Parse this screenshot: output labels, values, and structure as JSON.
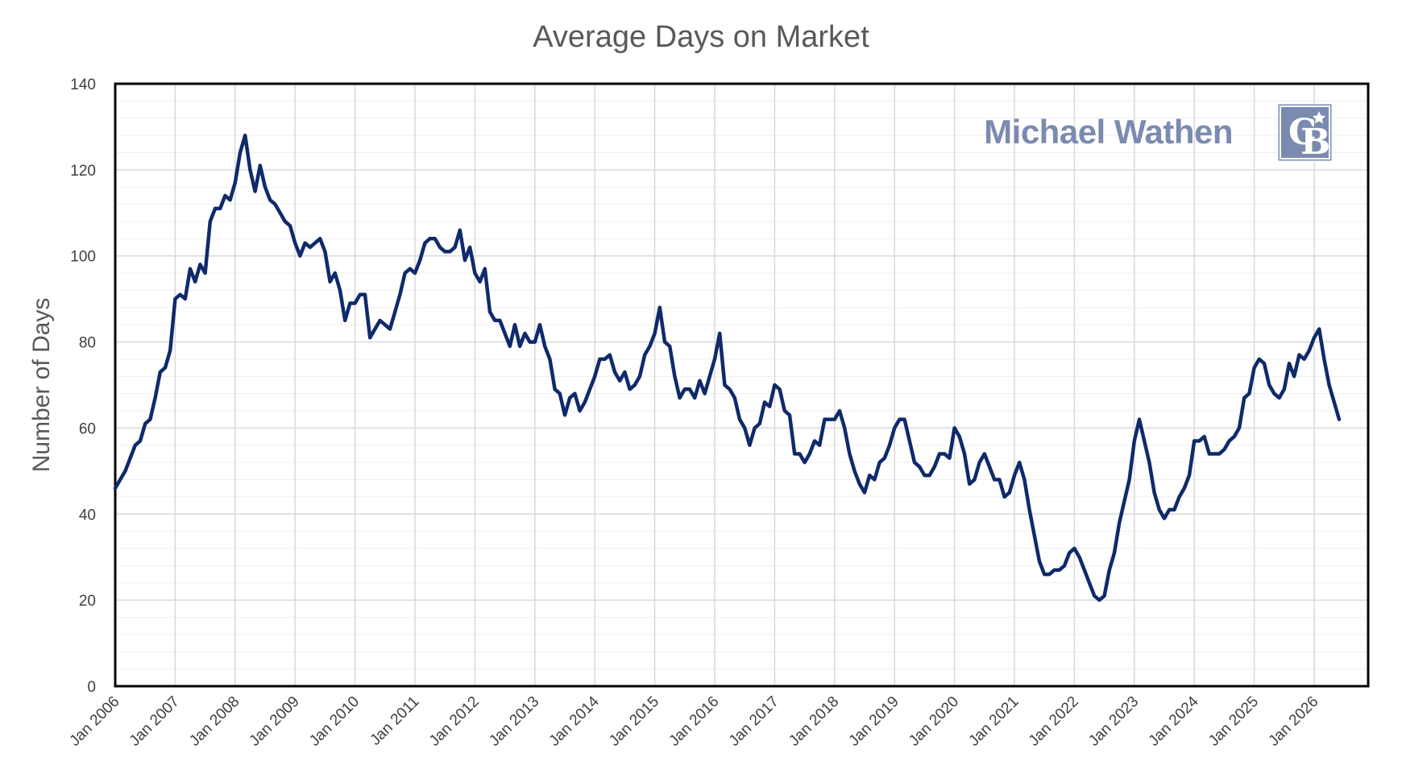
{
  "chart_data": {
    "type": "line",
    "title": "Average Days on Market",
    "ylabel": "Number of Days",
    "xlabel": "",
    "ylim": [
      0,
      140
    ],
    "yticks": [
      0,
      20,
      40,
      60,
      80,
      100,
      120,
      140
    ],
    "x_start": "Jan 2006",
    "x_ticks": [
      "Jan 2006",
      "Jan 2007",
      "Jan 2008",
      "Jan 2009",
      "Jan 2010",
      "Jan 2011",
      "Jan 2012",
      "Jan 2013",
      "Jan 2014",
      "Jan 2015",
      "Jan 2016",
      "Jan 2017",
      "Jan 2018",
      "Jan 2019",
      "Jan 2020",
      "Jan 2021",
      "Jan 2022",
      "Jan 2023",
      "Jan 2024",
      "Jan 2025",
      "Jan 2026"
    ],
    "grid": true,
    "line_color": "#0f2a6b",
    "series": [
      {
        "values": [
          46,
          48,
          50,
          53,
          56,
          57,
          61,
          62,
          67,
          73,
          74,
          78,
          90,
          91,
          90,
          97,
          94,
          98,
          96,
          108,
          111,
          111,
          114,
          113,
          117,
          124,
          128,
          120,
          115,
          121,
          116,
          113,
          112,
          110,
          108,
          107,
          103,
          100,
          103,
          102,
          103,
          104,
          101,
          94,
          96,
          92,
          85,
          89,
          89,
          91,
          91,
          81,
          83,
          85,
          84,
          83,
          87,
          91,
          96,
          97,
          96,
          99,
          103,
          104,
          104,
          102,
          101,
          101,
          102,
          106,
          99,
          102,
          96,
          94,
          97,
          87,
          85,
          85,
          82,
          79,
          84,
          79,
          82,
          80,
          80,
          84,
          79,
          76,
          69,
          68,
          63,
          67,
          68,
          64,
          66,
          69,
          72,
          76,
          76,
          77,
          73,
          71,
          73,
          69,
          70,
          72,
          77,
          79,
          82,
          88,
          80,
          79,
          72,
          67,
          69,
          69,
          67,
          71,
          68,
          72,
          76,
          82,
          70,
          69,
          67,
          62,
          60,
          56,
          60,
          61,
          66,
          65,
          70,
          69,
          64,
          63,
          54,
          54,
          52,
          54,
          57,
          56,
          62,
          62,
          62,
          64,
          60,
          54,
          50,
          47,
          45,
          49,
          48,
          52,
          53,
          56,
          60,
          62,
          62,
          57,
          52,
          51,
          49,
          49,
          51,
          54,
          54,
          53,
          60,
          58,
          54,
          47,
          48,
          52,
          54,
          51,
          48,
          48,
          44,
          45,
          49,
          52,
          48,
          41,
          35,
          29,
          26,
          26,
          27,
          27,
          28,
          31,
          32,
          30,
          27,
          24,
          21,
          20,
          21,
          27,
          31,
          38,
          43,
          48,
          57,
          62,
          57,
          52,
          45,
          41,
          39,
          41,
          41,
          44,
          46,
          49,
          57,
          57,
          58,
          54,
          54,
          54,
          55,
          57,
          58,
          60,
          67,
          68,
          74,
          76,
          75,
          70,
          68,
          67,
          69,
          75,
          72,
          77,
          76,
          78,
          81,
          83,
          76,
          70,
          66,
          62
        ]
      }
    ]
  },
  "watermark": {
    "brand_name": "Michael Wathen",
    "brand_color": "#7b8bb0",
    "logo": "coldwell-banker-cb-logo"
  },
  "colors": {
    "title": "#595959",
    "axis": "#000000",
    "gridline": "#d9d9d9",
    "gridline_minor": "#efefef"
  }
}
